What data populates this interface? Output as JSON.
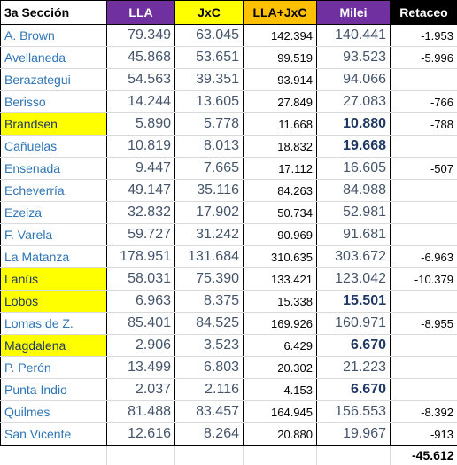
{
  "header": {
    "name": "3a Sección",
    "lla": "LLA",
    "jxc": "JxC",
    "sum": "LLA+JxC",
    "milei": "Milei",
    "retaceo": "Retaceo"
  },
  "rows": [
    {
      "name": "A. Brown",
      "lla": "79.349",
      "jxc": "63.045",
      "sum": "142.394",
      "milei": "140.441",
      "ret": "-1.953",
      "hl": false,
      "bold": false
    },
    {
      "name": "Avellaneda",
      "lla": "45.868",
      "jxc": "53.651",
      "sum": "99.519",
      "milei": "93.523",
      "ret": "-5.996",
      "hl": false,
      "bold": false
    },
    {
      "name": "Berazategui",
      "lla": "54.563",
      "jxc": "39.351",
      "sum": "93.914",
      "milei": "94.066",
      "ret": "",
      "hl": false,
      "bold": false
    },
    {
      "name": "Berisso",
      "lla": "14.244",
      "jxc": "13.605",
      "sum": "27.849",
      "milei": "27.083",
      "ret": "-766",
      "hl": false,
      "bold": false
    },
    {
      "name": "Brandsen",
      "lla": "5.890",
      "jxc": "5.778",
      "sum": "11.668",
      "milei": "10.880",
      "ret": "-788",
      "hl": true,
      "bold": true
    },
    {
      "name": "Cañuelas",
      "lla": "10.819",
      "jxc": "8.013",
      "sum": "18.832",
      "milei": "19.668",
      "ret": "",
      "hl": false,
      "bold": true
    },
    {
      "name": "Ensenada",
      "lla": "9.447",
      "jxc": "7.665",
      "sum": "17.112",
      "milei": "16.605",
      "ret": "-507",
      "hl": false,
      "bold": false
    },
    {
      "name": "Echeverría",
      "lla": "49.147",
      "jxc": "35.116",
      "sum": "84.263",
      "milei": "84.988",
      "ret": "",
      "hl": false,
      "bold": false
    },
    {
      "name": "Ezeiza",
      "lla": "32.832",
      "jxc": "17.902",
      "sum": "50.734",
      "milei": "52.981",
      "ret": "",
      "hl": false,
      "bold": false
    },
    {
      "name": "F. Varela",
      "lla": "59.727",
      "jxc": "31.242",
      "sum": "90.969",
      "milei": "91.681",
      "ret": "",
      "hl": false,
      "bold": false
    },
    {
      "name": "La Matanza",
      "lla": "178.951",
      "jxc": "131.684",
      "sum": "310.635",
      "milei": "303.672",
      "ret": "-6.963",
      "hl": false,
      "bold": false
    },
    {
      "name": "Lanús",
      "lla": "58.031",
      "jxc": "75.390",
      "sum": "133.421",
      "milei": "123.042",
      "ret": "-10.379",
      "hl": true,
      "bold": false
    },
    {
      "name": "Lobos",
      "lla": "6.963",
      "jxc": "8.375",
      "sum": "15.338",
      "milei": "15.501",
      "ret": "",
      "hl": true,
      "bold": true
    },
    {
      "name": "Lomas de Z.",
      "lla": "85.401",
      "jxc": "84.525",
      "sum": "169.926",
      "milei": "160.971",
      "ret": "-8.955",
      "hl": false,
      "bold": false
    },
    {
      "name": "Magdalena",
      "lla": "2.906",
      "jxc": "3.523",
      "sum": "6.429",
      "milei": "6.670",
      "ret": "",
      "hl": true,
      "bold": true
    },
    {
      "name": "P. Perón",
      "lla": "13.499",
      "jxc": "6.803",
      "sum": "20.302",
      "milei": "21.223",
      "ret": "",
      "hl": false,
      "bold": false
    },
    {
      "name": "Punta Indio",
      "lla": "2.037",
      "jxc": "2.116",
      "sum": "4.153",
      "milei": "6.670",
      "ret": "",
      "hl": false,
      "bold": true
    },
    {
      "name": "Quilmes",
      "lla": "81.488",
      "jxc": "83.457",
      "sum": "164.945",
      "milei": "156.553",
      "ret": "-8.392",
      "hl": false,
      "bold": false
    },
    {
      "name": "San Vicente",
      "lla": "12.616",
      "jxc": "8.264",
      "sum": "20.880",
      "milei": "19.967",
      "ret": "-913",
      "hl": false,
      "bold": false
    }
  ],
  "total": {
    "retaceo": "-45.612"
  }
}
